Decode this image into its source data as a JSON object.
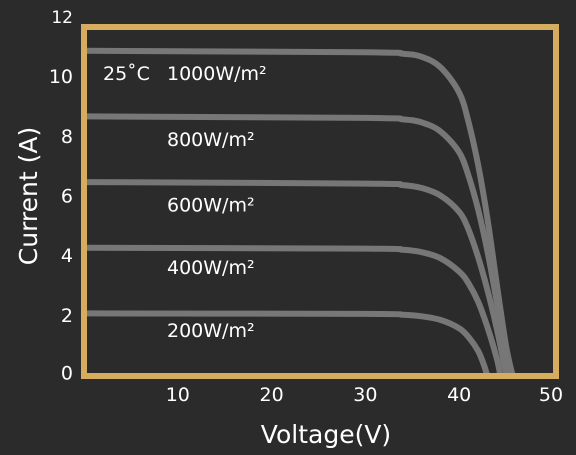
{
  "chart_data": {
    "type": "line",
    "title": "",
    "xlabel": "Voltage(V)",
    "ylabel": "Current (A)",
    "xlim": [
      0,
      50
    ],
    "ylim": [
      0,
      12
    ],
    "grid": false,
    "legend": "none",
    "x_ticks": [
      "10",
      "20",
      "30",
      "40",
      "50"
    ],
    "x_tick_values": [
      10,
      20,
      30,
      40,
      50
    ],
    "y_ticks": [
      "0",
      "2",
      "4",
      "6",
      "8",
      "10",
      "12"
    ],
    "y_tick_values": [
      0,
      2,
      4,
      6,
      8,
      10,
      12
    ],
    "annotation": "25˚C",
    "colors": {
      "background": "#2b2b2b",
      "frame": "#d6ac5e",
      "curve": "#777777",
      "text": "#ffffff"
    },
    "series": [
      {
        "label": "1000W/m²",
        "label_x": 8.5,
        "label_y": 10.1,
        "points": [
          [
            0,
            10.9
          ],
          [
            30,
            10.85
          ],
          [
            34,
            10.8
          ],
          [
            36,
            10.7
          ],
          [
            38,
            10.35
          ],
          [
            40,
            9.5
          ],
          [
            41,
            8.5
          ],
          [
            42,
            7.1
          ],
          [
            43,
            5.3
          ],
          [
            44,
            3.1
          ],
          [
            45,
            1.0
          ],
          [
            45.7,
            0
          ]
        ]
      },
      {
        "label": "800W/m²",
        "label_x": 8.5,
        "label_y": 7.9,
        "points": [
          [
            0,
            8.7
          ],
          [
            30,
            8.65
          ],
          [
            34,
            8.6
          ],
          [
            36,
            8.5
          ],
          [
            38,
            8.2
          ],
          [
            40,
            7.5
          ],
          [
            41,
            6.7
          ],
          [
            42,
            5.6
          ],
          [
            43,
            4.2
          ],
          [
            44,
            2.5
          ],
          [
            45,
            0.8
          ],
          [
            45.4,
            0
          ]
        ]
      },
      {
        "label": "600W/m²",
        "label_x": 8.5,
        "label_y": 5.7,
        "points": [
          [
            0,
            6.5
          ],
          [
            30,
            6.45
          ],
          [
            34,
            6.4
          ],
          [
            36,
            6.3
          ],
          [
            38,
            6.05
          ],
          [
            40,
            5.5
          ],
          [
            41,
            4.9
          ],
          [
            42,
            4.0
          ],
          [
            43,
            2.9
          ],
          [
            44,
            1.6
          ],
          [
            44.8,
            0.4
          ],
          [
            45.1,
            0
          ]
        ]
      },
      {
        "label": "400W/m²",
        "label_x": 8.5,
        "label_y": 3.6,
        "points": [
          [
            0,
            4.3
          ],
          [
            30,
            4.27
          ],
          [
            34,
            4.23
          ],
          [
            36,
            4.15
          ],
          [
            38,
            3.95
          ],
          [
            40,
            3.5
          ],
          [
            41,
            3.1
          ],
          [
            42,
            2.5
          ],
          [
            43,
            1.65
          ],
          [
            44,
            0.6
          ],
          [
            44.4,
            0
          ]
        ]
      },
      {
        "label": "200W/m²",
        "label_x": 8.5,
        "label_y": 1.5,
        "points": [
          [
            0,
            2.1
          ],
          [
            30,
            2.08
          ],
          [
            34,
            2.05
          ],
          [
            36,
            2.0
          ],
          [
            38,
            1.88
          ],
          [
            40,
            1.6
          ],
          [
            41,
            1.3
          ],
          [
            42,
            0.85
          ],
          [
            42.6,
            0.4
          ],
          [
            43,
            0
          ]
        ]
      }
    ]
  }
}
